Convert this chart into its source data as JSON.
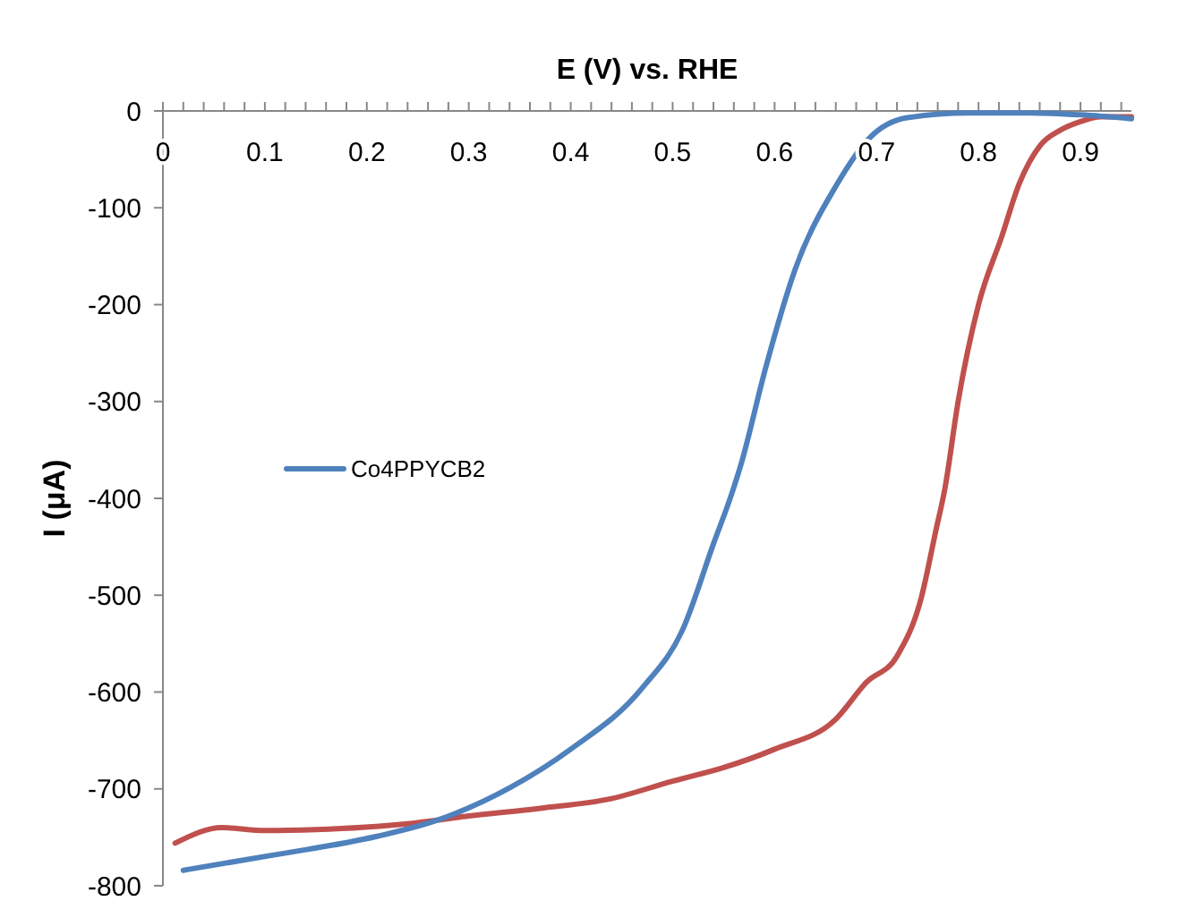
{
  "chart_data": {
    "type": "line",
    "xlabel": "E (V) vs. RHE",
    "ylabel": "I (μA)",
    "xlim": [
      0,
      0.95
    ],
    "ylim": [
      -800,
      0
    ],
    "xticks": [
      0,
      {
        "value": 0.02,
        "label": null
      },
      {
        "value": 0.04,
        "label": null
      },
      {
        "value": 0.06,
        "label": null
      },
      {
        "value": 0.08,
        "label": null
      },
      0.1,
      {
        "value": 0.12,
        "label": null
      },
      {
        "value": 0.14,
        "label": null
      },
      {
        "value": 0.16,
        "label": null
      },
      {
        "value": 0.18,
        "label": null
      },
      0.2,
      {
        "value": 0.22,
        "label": null
      },
      {
        "value": 0.24,
        "label": null
      },
      {
        "value": 0.26,
        "label": null
      },
      {
        "value": 0.28,
        "label": null
      },
      0.3,
      {
        "value": 0.32,
        "label": null
      },
      {
        "value": 0.34,
        "label": null
      },
      {
        "value": 0.36,
        "label": null
      },
      {
        "value": 0.38,
        "label": null
      },
      0.4,
      {
        "value": 0.42,
        "label": null
      },
      {
        "value": 0.44,
        "label": null
      },
      {
        "value": 0.46,
        "label": null
      },
      {
        "value": 0.48,
        "label": null
      },
      0.5,
      {
        "value": 0.52,
        "label": null
      },
      {
        "value": 0.54,
        "label": null
      },
      {
        "value": 0.56,
        "label": null
      },
      {
        "value": 0.58,
        "label": null
      },
      0.6,
      {
        "value": 0.62,
        "label": null
      },
      {
        "value": 0.64,
        "label": null
      },
      {
        "value": 0.66,
        "label": null
      },
      {
        "value": 0.68,
        "label": null
      },
      0.7,
      {
        "value": 0.72,
        "label": null
      },
      {
        "value": 0.74,
        "label": null
      },
      {
        "value": 0.76,
        "label": null
      },
      {
        "value": 0.78,
        "label": null
      },
      0.8,
      {
        "value": 0.82,
        "label": null
      },
      {
        "value": 0.84,
        "label": null
      },
      {
        "value": 0.86,
        "label": null
      },
      {
        "value": 0.88,
        "label": null
      },
      0.9,
      {
        "value": 0.92,
        "label": null
      },
      {
        "value": 0.94,
        "label": null
      }
    ],
    "yticks": [
      0,
      -100,
      -200,
      -300,
      -400,
      -500,
      -600,
      -700,
      -800
    ],
    "grid": false,
    "legend": "left",
    "line_style": "solid",
    "series": [
      {
        "color": "#c0504d",
        "x": [
          0.012,
          0.058,
          0.1,
          0.15,
          0.24,
          0.3,
          0.37,
          0.44,
          0.5,
          0.55,
          0.6,
          0.66,
          0.69,
          0.72,
          0.744,
          0.758,
          0.767,
          0.78,
          0.8,
          0.823,
          0.84,
          0.861,
          0.88,
          0.9,
          0.92,
          0.95
        ],
        "values": [
          -756,
          -740,
          -743,
          -742,
          -736,
          -728,
          -720,
          -710,
          -692,
          -678,
          -659,
          -628,
          -590,
          -563,
          -502,
          -434,
          -390,
          -300,
          -200,
          -129,
          -75,
          -35,
          -20,
          -11,
          -6,
          -6
        ]
      },
      {
        "name": "Co4PPYCB2",
        "color": "#4f81bd",
        "x": [
          0.02,
          0.11,
          0.21,
          0.27,
          0.34,
          0.4,
          0.47,
          0.51,
          0.54,
          0.558,
          0.567,
          0.591,
          0.62,
          0.661,
          0.693,
          0.73,
          0.79,
          0.85,
          0.9,
          0.95
        ],
        "values": [
          -784,
          -768,
          -749,
          -732,
          -699,
          -659,
          -596,
          -535,
          -447,
          -395,
          -365,
          -266,
          -164,
          -76,
          -28,
          -7,
          -2,
          -2,
          -4,
          -8
        ]
      }
    ]
  }
}
